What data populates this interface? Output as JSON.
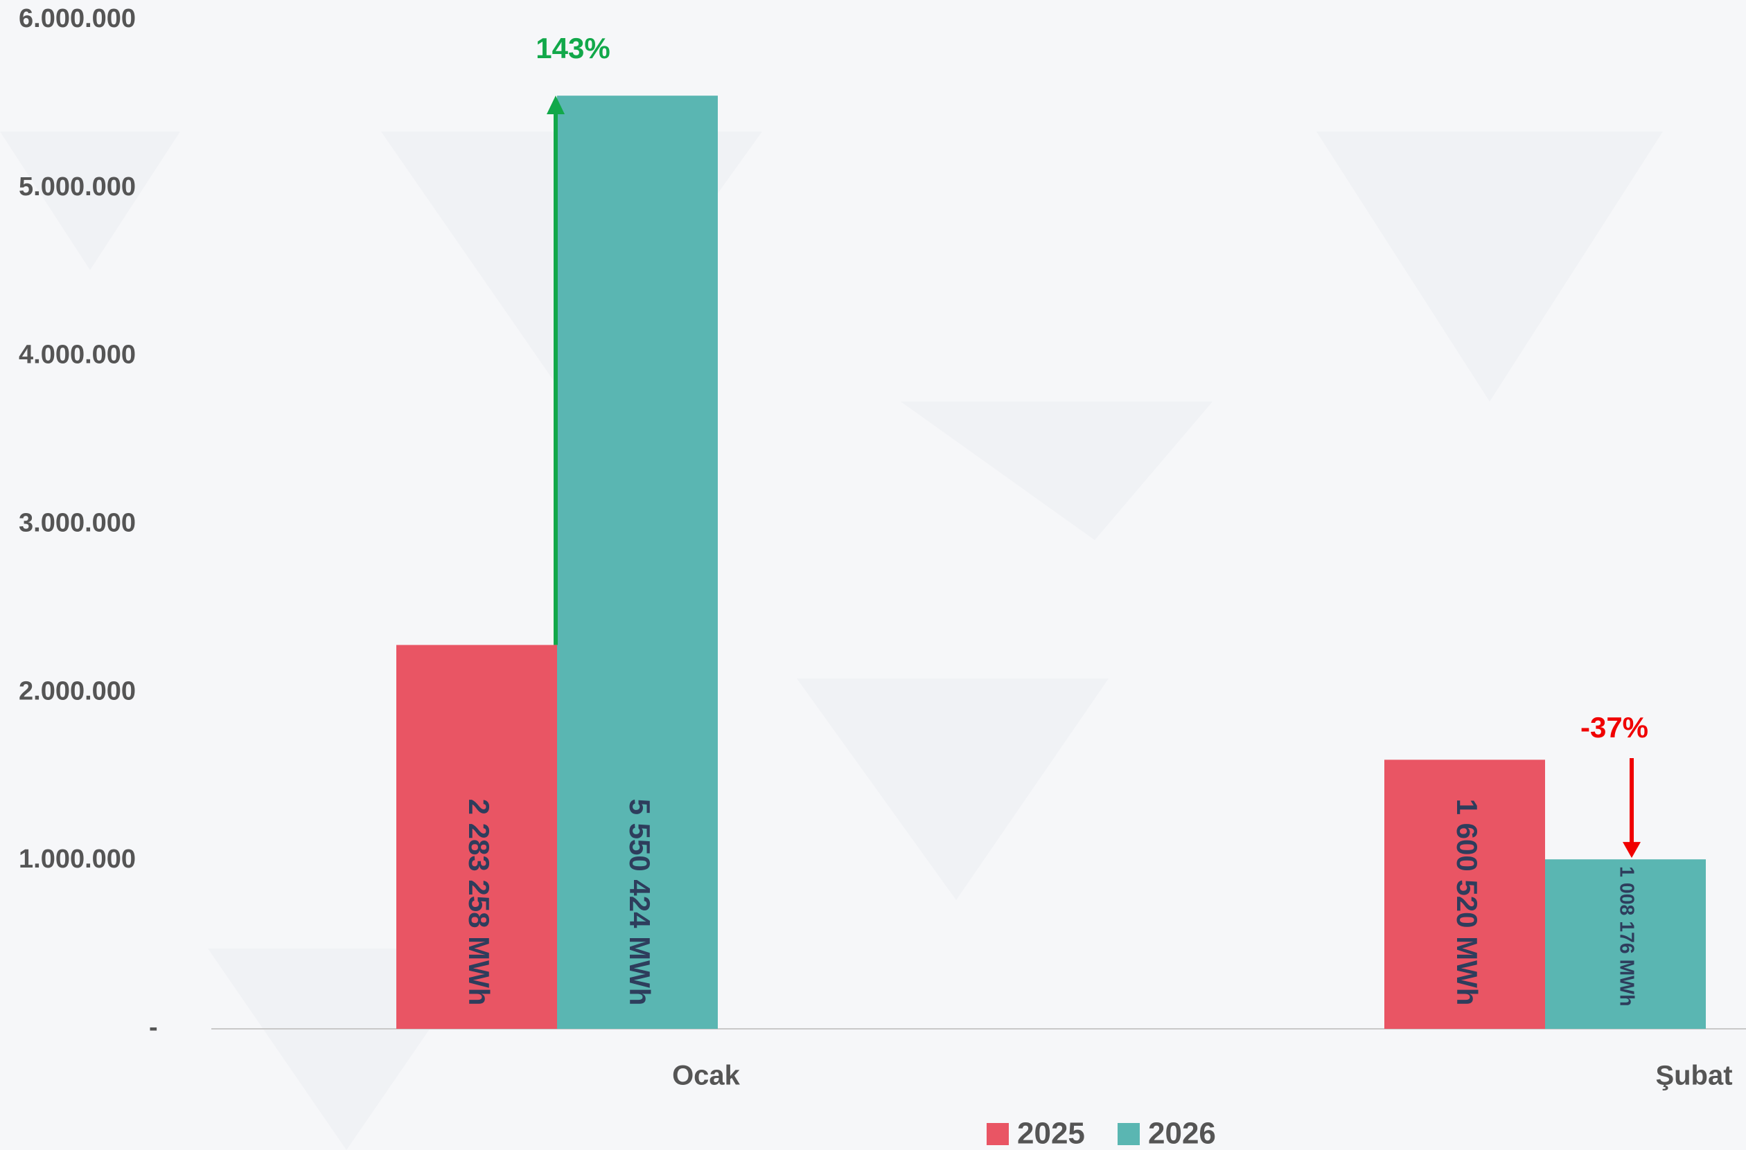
{
  "chart_data": {
    "type": "bar",
    "categories": [
      "Ocak",
      "Şubat"
    ],
    "series": [
      {
        "name": "2025",
        "color": "#e95564",
        "values": [
          2283258,
          1600520
        ],
        "value_labels": [
          "2 283 258 MWh",
          "1 600 520 MWh"
        ]
      },
      {
        "name": "2026",
        "color": "#5ab6b2",
        "values": [
          5550424,
          1008176
        ],
        "value_labels": [
          "5 550 424 MWh",
          "1 008 176 MWh"
        ]
      }
    ],
    "ylim": [
      0,
      6000000
    ],
    "yticks": [
      {
        "value": 0,
        "label": "-"
      },
      {
        "value": 1000000,
        "label": "1.000.000"
      },
      {
        "value": 2000000,
        "label": "2.000.000"
      },
      {
        "value": 3000000,
        "label": "3.000.000"
      },
      {
        "value": 4000000,
        "label": "4.000.000"
      },
      {
        "value": 5000000,
        "label": "5.000.000"
      },
      {
        "value": 6000000,
        "label": "6.000.000"
      }
    ],
    "annotations": [
      {
        "text": "143%",
        "color": "#12a84a"
      },
      {
        "text": "-37%",
        "color": "#f00000"
      }
    ],
    "legend": "bottom"
  }
}
